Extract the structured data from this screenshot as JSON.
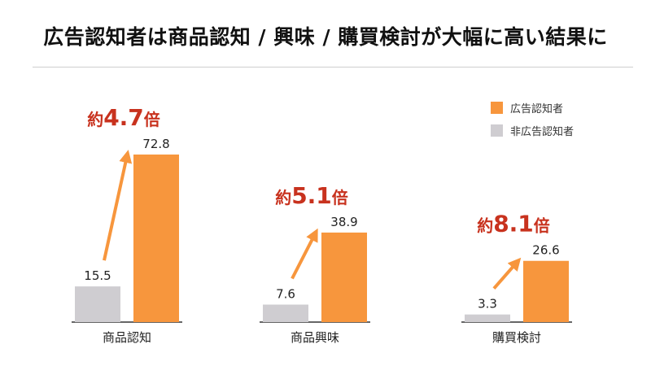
{
  "title": "広告認知者は商品認知 / 興味 / 購買検討が大幅に高い結果に",
  "chart_data": {
    "type": "bar",
    "categories": [
      "商品認知",
      "商品興味",
      "購買検討"
    ],
    "series": [
      {
        "name": "非広告認知者",
        "values": [
          15.5,
          7.6,
          3.3
        ],
        "color": "#cfcdd1"
      },
      {
        "name": "広告認知者",
        "values": [
          72.8,
          38.9,
          26.6
        ],
        "color": "#f7963d"
      }
    ],
    "annotations": [
      {
        "prefix": "約",
        "number": "4.7",
        "suffix": "倍"
      },
      {
        "prefix": "約",
        "number": "5.1",
        "suffix": "倍"
      },
      {
        "prefix": "約",
        "number": "8.1",
        "suffix": "倍"
      }
    ],
    "legend_position": "top-right",
    "ylim": [
      0,
      80
    ],
    "grid": false,
    "colors": {
      "arrow": "#f7963d",
      "annotation": "#c8321e",
      "axis": "#333333"
    }
  }
}
